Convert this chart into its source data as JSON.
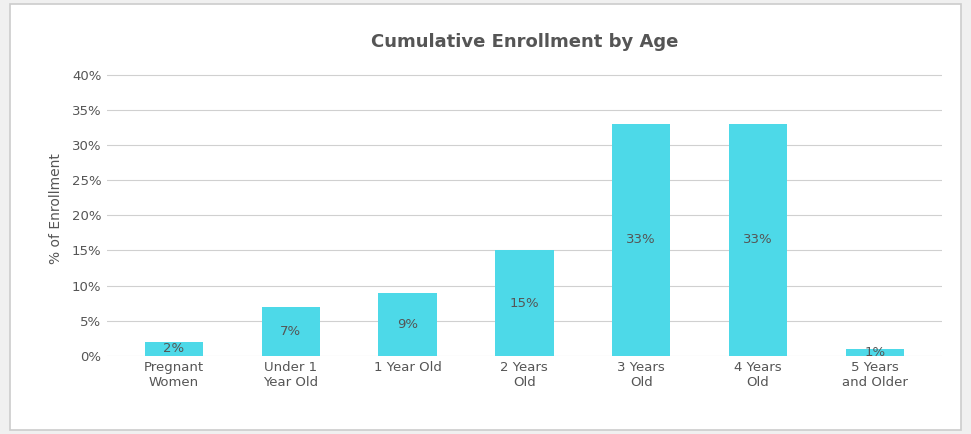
{
  "title": "Cumulative Enrollment by Age",
  "categories": [
    "Pregnant\nWomen",
    "Under 1\nYear Old",
    "1 Year Old",
    "2 Years\nOld",
    "3 Years\nOld",
    "4 Years\nOld",
    "5 Years\nand Older"
  ],
  "values": [
    2,
    7,
    9,
    15,
    33,
    33,
    1
  ],
  "bar_color": "#4DD9E8",
  "label_color": "#555555",
  "ylabel": "% of Enrollment",
  "ylim": [
    0,
    42
  ],
  "yticks": [
    0,
    5,
    10,
    15,
    20,
    25,
    30,
    35,
    40
  ],
  "background_color": "#ffffff",
  "plot_bg_color": "#ffffff",
  "outer_bg_color": "#f0f0f0",
  "grid_color": "#d0d0d0",
  "title_fontsize": 13,
  "axis_label_fontsize": 10,
  "tick_fontsize": 9.5,
  "bar_label_fontsize": 9.5,
  "bar_width": 0.5
}
